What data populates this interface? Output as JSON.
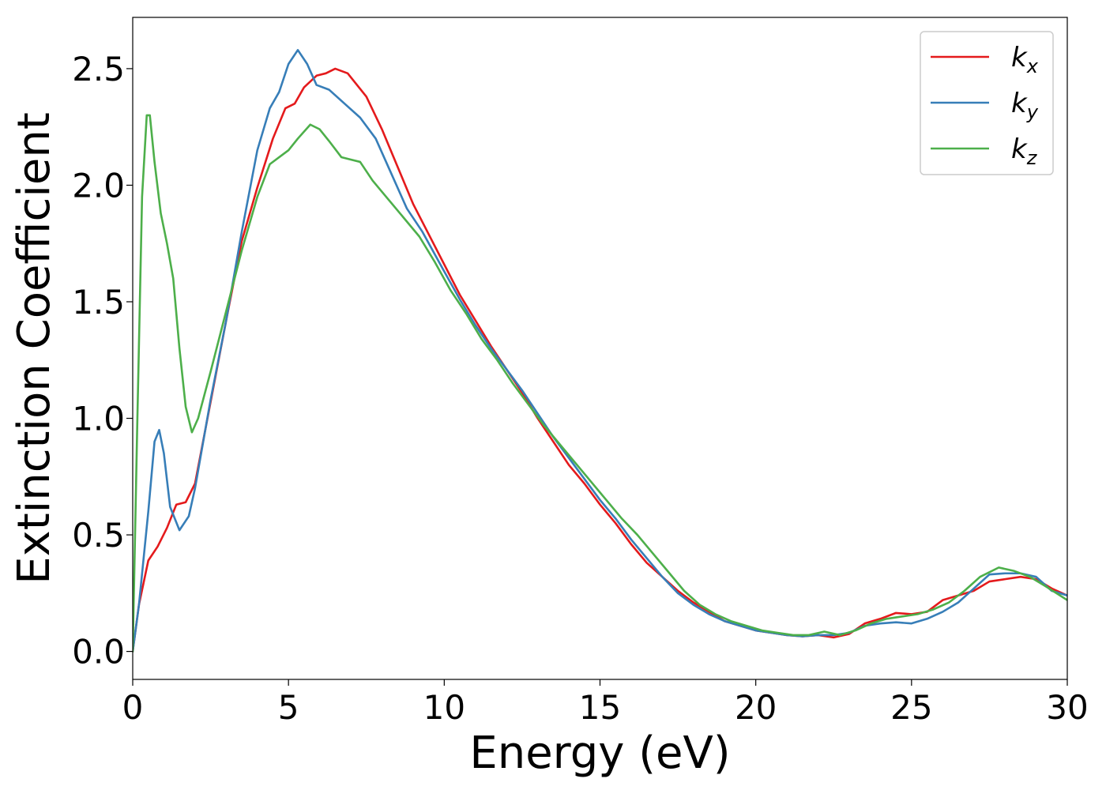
{
  "chart_data": {
    "type": "line",
    "title": "",
    "xlabel": "Energy (eV)",
    "ylabel": "Extinction Coefficient",
    "xlim": [
      0,
      30
    ],
    "ylim": [
      -0.12,
      2.72
    ],
    "xticks": [
      0,
      5,
      10,
      15,
      20,
      25,
      30
    ],
    "xtick_labels": [
      "0",
      "5",
      "10",
      "15",
      "20",
      "25",
      "30"
    ],
    "yticks": [
      0.0,
      0.5,
      1.0,
      1.5,
      2.0,
      2.5
    ],
    "ytick_labels": [
      "0.0",
      "0.5",
      "1.0",
      "1.5",
      "2.0",
      "2.5"
    ],
    "grid": false,
    "legend_position": "top-right",
    "series": [
      {
        "name": "k_x",
        "legend_base": "k",
        "legend_sub": "x",
        "color": "#e41a1c",
        "points": [
          [
            0,
            0
          ],
          [
            0.2,
            0.2
          ],
          [
            0.5,
            0.39
          ],
          [
            0.8,
            0.45
          ],
          [
            1.1,
            0.53
          ],
          [
            1.4,
            0.63
          ],
          [
            1.7,
            0.64
          ],
          [
            2.0,
            0.72
          ],
          [
            2.5,
            1.07
          ],
          [
            3.0,
            1.42
          ],
          [
            3.5,
            1.76
          ],
          [
            4.0,
            1.99
          ],
          [
            4.5,
            2.2
          ],
          [
            4.9,
            2.33
          ],
          [
            5.2,
            2.35
          ],
          [
            5.5,
            2.42
          ],
          [
            5.9,
            2.47
          ],
          [
            6.2,
            2.48
          ],
          [
            6.5,
            2.5
          ],
          [
            6.9,
            2.48
          ],
          [
            7.5,
            2.38
          ],
          [
            8.0,
            2.24
          ],
          [
            8.5,
            2.08
          ],
          [
            9.0,
            1.92
          ],
          [
            9.5,
            1.79
          ],
          [
            10.0,
            1.66
          ],
          [
            10.5,
            1.53
          ],
          [
            11.0,
            1.42
          ],
          [
            11.5,
            1.31
          ],
          [
            12.0,
            1.21
          ],
          [
            12.5,
            1.11
          ],
          [
            13.0,
            1.0
          ],
          [
            13.5,
            0.9
          ],
          [
            14.0,
            0.8
          ],
          [
            14.5,
            0.72
          ],
          [
            15.0,
            0.63
          ],
          [
            15.5,
            0.55
          ],
          [
            16.0,
            0.46
          ],
          [
            16.5,
            0.38
          ],
          [
            17.0,
            0.32
          ],
          [
            17.5,
            0.26
          ],
          [
            18.0,
            0.21
          ],
          [
            18.5,
            0.17
          ],
          [
            19.0,
            0.13
          ],
          [
            19.5,
            0.11
          ],
          [
            20.0,
            0.09
          ],
          [
            20.5,
            0.08
          ],
          [
            21.0,
            0.07
          ],
          [
            21.5,
            0.065
          ],
          [
            22.0,
            0.07
          ],
          [
            22.5,
            0.06
          ],
          [
            23.0,
            0.075
          ],
          [
            23.5,
            0.12
          ],
          [
            24.0,
            0.14
          ],
          [
            24.5,
            0.165
          ],
          [
            25.0,
            0.16
          ],
          [
            25.5,
            0.17
          ],
          [
            26.0,
            0.22
          ],
          [
            26.5,
            0.24
          ],
          [
            27.0,
            0.26
          ],
          [
            27.5,
            0.3
          ],
          [
            28.0,
            0.31
          ],
          [
            28.5,
            0.32
          ],
          [
            29.0,
            0.31
          ],
          [
            29.5,
            0.27
          ],
          [
            30.0,
            0.24
          ]
        ]
      },
      {
        "name": "k_y",
        "legend_base": "k",
        "legend_sub": "y",
        "color": "#377eb8",
        "points": [
          [
            0,
            0
          ],
          [
            0.2,
            0.2
          ],
          [
            0.5,
            0.6
          ],
          [
            0.7,
            0.9
          ],
          [
            0.85,
            0.95
          ],
          [
            1.0,
            0.85
          ],
          [
            1.2,
            0.62
          ],
          [
            1.5,
            0.52
          ],
          [
            1.8,
            0.58
          ],
          [
            2.0,
            0.7
          ],
          [
            2.5,
            1.08
          ],
          [
            3.0,
            1.42
          ],
          [
            3.5,
            1.8
          ],
          [
            4.0,
            2.15
          ],
          [
            4.4,
            2.33
          ],
          [
            4.7,
            2.4
          ],
          [
            5.0,
            2.52
          ],
          [
            5.3,
            2.58
          ],
          [
            5.6,
            2.52
          ],
          [
            5.9,
            2.43
          ],
          [
            6.3,
            2.41
          ],
          [
            6.8,
            2.35
          ],
          [
            7.3,
            2.29
          ],
          [
            7.8,
            2.2
          ],
          [
            8.3,
            2.05
          ],
          [
            8.8,
            1.9
          ],
          [
            9.3,
            1.8
          ],
          [
            10.0,
            1.63
          ],
          [
            10.5,
            1.51
          ],
          [
            11.0,
            1.4
          ],
          [
            11.5,
            1.3
          ],
          [
            12.0,
            1.21
          ],
          [
            12.5,
            1.12
          ],
          [
            13.0,
            1.02
          ],
          [
            13.5,
            0.92
          ],
          [
            14.0,
            0.83
          ],
          [
            14.5,
            0.74
          ],
          [
            15.0,
            0.65
          ],
          [
            15.5,
            0.57
          ],
          [
            16.0,
            0.48
          ],
          [
            16.5,
            0.4
          ],
          [
            17.0,
            0.32
          ],
          [
            17.5,
            0.25
          ],
          [
            18.0,
            0.2
          ],
          [
            18.5,
            0.16
          ],
          [
            19.0,
            0.13
          ],
          [
            19.5,
            0.11
          ],
          [
            20.0,
            0.09
          ],
          [
            20.5,
            0.08
          ],
          [
            21.0,
            0.07
          ],
          [
            21.5,
            0.065
          ],
          [
            22.0,
            0.07
          ],
          [
            22.5,
            0.07
          ],
          [
            23.0,
            0.08
          ],
          [
            23.5,
            0.11
          ],
          [
            24.0,
            0.12
          ],
          [
            24.5,
            0.125
          ],
          [
            25.0,
            0.12
          ],
          [
            25.5,
            0.14
          ],
          [
            26.0,
            0.17
          ],
          [
            26.5,
            0.21
          ],
          [
            27.0,
            0.27
          ],
          [
            27.5,
            0.33
          ],
          [
            28.0,
            0.335
          ],
          [
            28.5,
            0.335
          ],
          [
            29.0,
            0.32
          ],
          [
            29.5,
            0.26
          ],
          [
            30.0,
            0.24
          ]
        ]
      },
      {
        "name": "k_z",
        "legend_base": "k",
        "legend_sub": "z",
        "color": "#4daf4a",
        "points": [
          [
            0,
            0
          ],
          [
            0.15,
            1.0
          ],
          [
            0.3,
            1.95
          ],
          [
            0.45,
            2.3
          ],
          [
            0.55,
            2.3
          ],
          [
            0.7,
            2.1
          ],
          [
            0.9,
            1.88
          ],
          [
            1.1,
            1.75
          ],
          [
            1.3,
            1.6
          ],
          [
            1.5,
            1.3
          ],
          [
            1.7,
            1.05
          ],
          [
            1.9,
            0.94
          ],
          [
            2.1,
            1.0
          ],
          [
            2.5,
            1.2
          ],
          [
            3.0,
            1.46
          ],
          [
            3.5,
            1.72
          ],
          [
            4.0,
            1.95
          ],
          [
            4.4,
            2.09
          ],
          [
            4.8,
            2.13
          ],
          [
            5.0,
            2.15
          ],
          [
            5.3,
            2.2
          ],
          [
            5.7,
            2.26
          ],
          [
            6.0,
            2.24
          ],
          [
            6.3,
            2.19
          ],
          [
            6.7,
            2.12
          ],
          [
            7.0,
            2.11
          ],
          [
            7.3,
            2.1
          ],
          [
            7.7,
            2.02
          ],
          [
            8.2,
            1.94
          ],
          [
            8.7,
            1.86
          ],
          [
            9.2,
            1.78
          ],
          [
            9.7,
            1.67
          ],
          [
            10.2,
            1.55
          ],
          [
            10.7,
            1.45
          ],
          [
            11.2,
            1.34
          ],
          [
            11.7,
            1.25
          ],
          [
            12.2,
            1.15
          ],
          [
            12.7,
            1.06
          ],
          [
            13.2,
            0.97
          ],
          [
            13.7,
            0.89
          ],
          [
            14.2,
            0.81
          ],
          [
            14.7,
            0.73
          ],
          [
            15.2,
            0.65
          ],
          [
            15.7,
            0.57
          ],
          [
            16.2,
            0.5
          ],
          [
            16.7,
            0.42
          ],
          [
            17.2,
            0.34
          ],
          [
            17.7,
            0.26
          ],
          [
            18.2,
            0.2
          ],
          [
            18.7,
            0.16
          ],
          [
            19.2,
            0.13
          ],
          [
            19.7,
            0.11
          ],
          [
            20.2,
            0.09
          ],
          [
            20.7,
            0.08
          ],
          [
            21.2,
            0.07
          ],
          [
            21.7,
            0.07
          ],
          [
            22.2,
            0.085
          ],
          [
            22.7,
            0.07
          ],
          [
            23.2,
            0.09
          ],
          [
            23.7,
            0.12
          ],
          [
            24.2,
            0.14
          ],
          [
            24.7,
            0.15
          ],
          [
            25.2,
            0.16
          ],
          [
            25.7,
            0.18
          ],
          [
            26.2,
            0.21
          ],
          [
            26.7,
            0.26
          ],
          [
            27.2,
            0.32
          ],
          [
            27.8,
            0.36
          ],
          [
            28.3,
            0.345
          ],
          [
            28.8,
            0.32
          ],
          [
            29.3,
            0.28
          ],
          [
            30.0,
            0.22
          ]
        ]
      }
    ]
  }
}
